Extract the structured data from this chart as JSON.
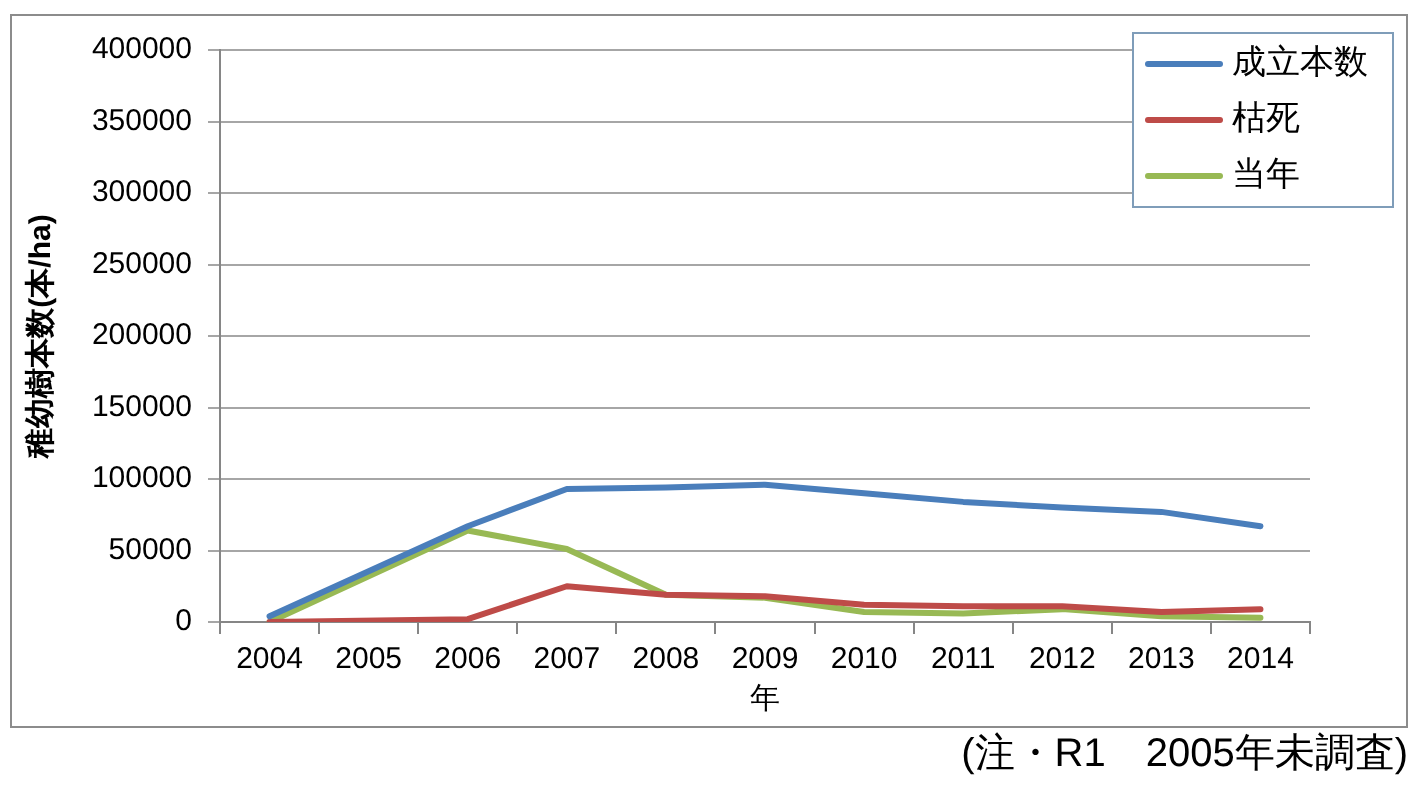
{
  "chart_data": {
    "type": "line",
    "xlabel": "年",
    "ylabel": "稚幼樹本数(本/ha)",
    "categories": [
      "2004",
      "2005",
      "2006",
      "2007",
      "2008",
      "2009",
      "2010",
      "2011",
      "2012",
      "2013",
      "2014"
    ],
    "series": [
      {
        "name": "成立本数",
        "color": "#4a7ebb",
        "values": [
          4000,
          null,
          67000,
          93000,
          94000,
          96000,
          90000,
          84000,
          80000,
          77000,
          67000
        ]
      },
      {
        "name": "枯死",
        "color": "#be4b48",
        "values": [
          0,
          null,
          2000,
          25000,
          19000,
          18000,
          12000,
          11000,
          11000,
          7000,
          9000
        ]
      },
      {
        "name": "当年",
        "color": "#98b954",
        "values": [
          0,
          null,
          64000,
          51000,
          19000,
          17000,
          7000,
          6000,
          9000,
          4000,
          3000
        ]
      }
    ],
    "ylim": [
      0,
      400000
    ],
    "yticks": [
      0,
      50000,
      100000,
      150000,
      200000,
      250000,
      300000,
      350000,
      400000
    ],
    "grid": "y",
    "legend": "top right",
    "marker": "none",
    "annotations": [
      "(注・R1　2005年未調査)"
    ]
  }
}
